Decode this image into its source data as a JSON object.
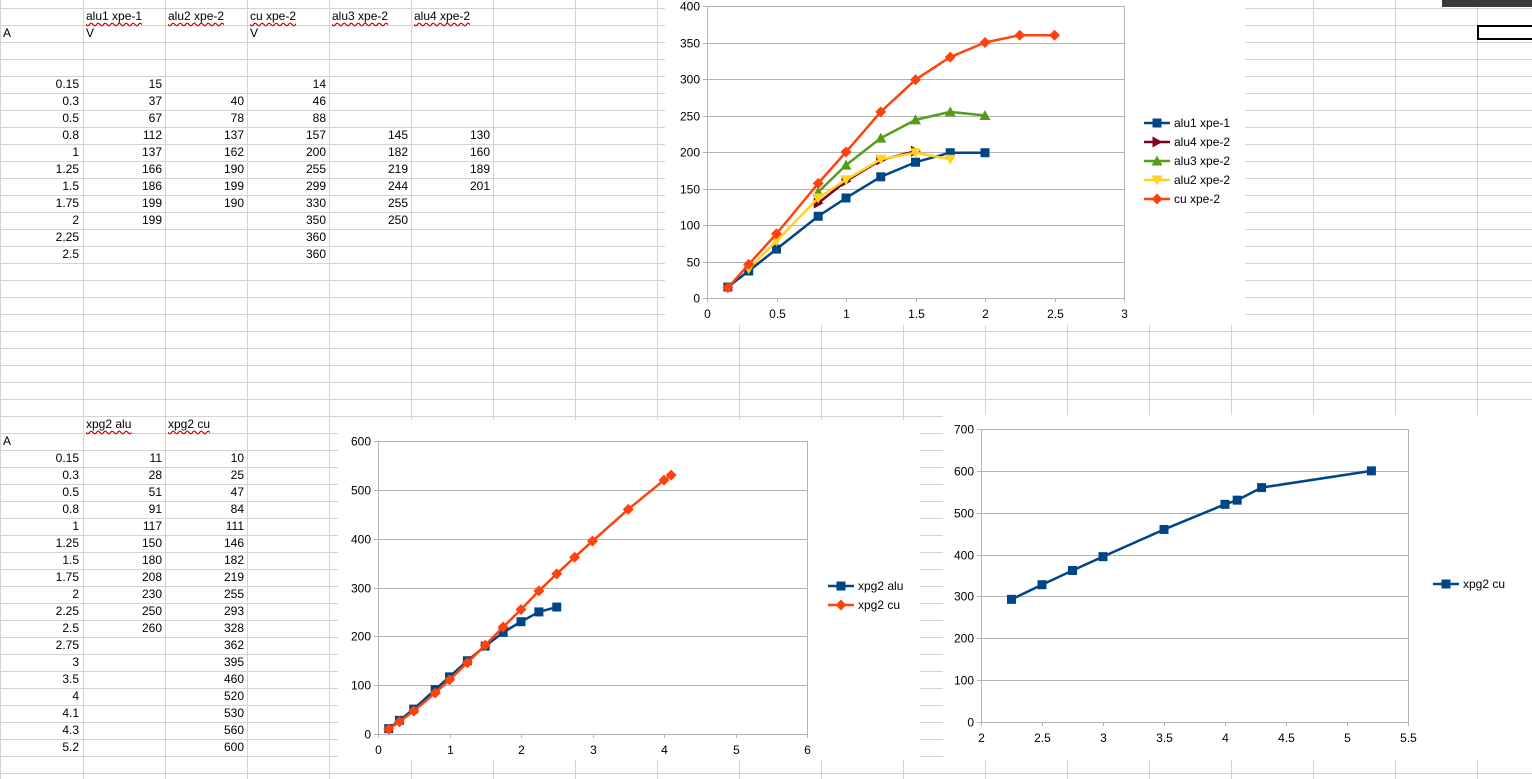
{
  "sheet1": {
    "headers": [
      "alu1 xpe-1",
      "alu2 xpe-2",
      "cu xpe-2",
      "alu3 xpe-2",
      "alu4 xpe-2"
    ],
    "units": [
      "A",
      "V",
      "V"
    ],
    "rows": [
      [
        "0.15",
        "15",
        "",
        "14",
        "",
        ""
      ],
      [
        "0.3",
        "37",
        "40",
        "46",
        "",
        ""
      ],
      [
        "0.5",
        "67",
        "78",
        "88",
        "",
        ""
      ],
      [
        "0.8",
        "112",
        "137",
        "157",
        "145",
        "130"
      ],
      [
        "1",
        "137",
        "162",
        "200",
        "182",
        "160"
      ],
      [
        "1.25",
        "166",
        "190",
        "255",
        "219",
        "189"
      ],
      [
        "1.5",
        "186",
        "199",
        "299",
        "244",
        "201"
      ],
      [
        "1.75",
        "199",
        "190",
        "330",
        "255",
        ""
      ],
      [
        "2",
        "199",
        "",
        "350",
        "250",
        ""
      ],
      [
        "2.25",
        "",
        "",
        "360",
        "",
        ""
      ],
      [
        "2.5",
        "",
        "",
        "360",
        "",
        ""
      ]
    ]
  },
  "sheet2": {
    "headers": [
      "xpg2 alu",
      "xpg2 cu"
    ],
    "unit": "A",
    "rows": [
      [
        "0.15",
        "11",
        "10"
      ],
      [
        "0.3",
        "28",
        "25"
      ],
      [
        "0.5",
        "51",
        "47"
      ],
      [
        "0.8",
        "91",
        "84"
      ],
      [
        "1",
        "117",
        "111"
      ],
      [
        "1.25",
        "150",
        "146"
      ],
      [
        "1.5",
        "180",
        "182"
      ],
      [
        "1.75",
        "208",
        "219"
      ],
      [
        "2",
        "230",
        "255"
      ],
      [
        "2.25",
        "250",
        "293"
      ],
      [
        "2.5",
        "260",
        "328"
      ],
      [
        "2.75",
        "",
        "362"
      ],
      [
        "3",
        "",
        "395"
      ],
      [
        "3.5",
        "",
        "460"
      ],
      [
        "4",
        "",
        "520"
      ],
      [
        "4.1",
        "",
        "530"
      ],
      [
        "4.3",
        "",
        "560"
      ],
      [
        "5.2",
        "",
        "600"
      ]
    ]
  },
  "chart_data": [
    {
      "type": "line",
      "title": "",
      "xlabel": "",
      "ylabel": "",
      "xlim": [
        0,
        3
      ],
      "ylim": [
        0,
        400
      ],
      "xticks": [
        "0",
        "0.5",
        "1",
        "1.5",
        "2",
        "2.5",
        "3"
      ],
      "yticks": [
        "0",
        "50",
        "100",
        "150",
        "200",
        "250",
        "300",
        "350",
        "400"
      ],
      "grid": "horizontal",
      "legend": "right",
      "series": [
        {
          "name": "alu1 xpe-1",
          "color": "#004586",
          "marker": "square",
          "x": [
            0.15,
            0.3,
            0.5,
            0.8,
            1,
            1.25,
            1.5,
            1.75,
            2
          ],
          "y": [
            15,
            37,
            67,
            112,
            137,
            166,
            186,
            199,
            199
          ]
        },
        {
          "name": "alu4 xpe-2",
          "color": "#7e0021",
          "marker": "triangle-right",
          "x": [
            0.8,
            1,
            1.25,
            1.5
          ],
          "y": [
            130,
            160,
            189,
            201
          ]
        },
        {
          "name": "alu3 xpe-2",
          "color": "#579d1c",
          "marker": "triangle-up",
          "x": [
            0.8,
            1,
            1.25,
            1.5,
            1.75,
            2
          ],
          "y": [
            145,
            182,
            219,
            244,
            255,
            250
          ]
        },
        {
          "name": "alu2 xpe-2",
          "color": "#ffd320",
          "marker": "triangle-down",
          "x": [
            0.3,
            0.5,
            0.8,
            1,
            1.25,
            1.5,
            1.75
          ],
          "y": [
            40,
            78,
            137,
            162,
            190,
            199,
            190
          ]
        },
        {
          "name": "cu xpe-2",
          "color": "#ff420e",
          "marker": "diamond",
          "x": [
            0.15,
            0.3,
            0.5,
            0.8,
            1,
            1.25,
            1.5,
            1.75,
            2,
            2.25,
            2.5
          ],
          "y": [
            14,
            46,
            88,
            157,
            200,
            255,
            299,
            330,
            350,
            360,
            360
          ]
        }
      ]
    },
    {
      "type": "line",
      "title": "",
      "xlabel": "",
      "ylabel": "",
      "xlim": [
        0,
        6
      ],
      "ylim": [
        0,
        600
      ],
      "xticks": [
        "0",
        "1",
        "2",
        "3",
        "4",
        "5",
        "6"
      ],
      "yticks": [
        "0",
        "100",
        "200",
        "300",
        "400",
        "500",
        "600"
      ],
      "grid": "horizontal",
      "legend": "right",
      "series": [
        {
          "name": "xpg2 alu",
          "color": "#004586",
          "marker": "square",
          "x": [
            0.15,
            0.3,
            0.5,
            0.8,
            1,
            1.25,
            1.5,
            1.75,
            2,
            2.25,
            2.5
          ],
          "y": [
            11,
            28,
            51,
            91,
            117,
            150,
            180,
            208,
            230,
            250,
            260
          ]
        },
        {
          "name": "xpg2 cu",
          "color": "#ff420e",
          "marker": "diamond",
          "x": [
            0.15,
            0.3,
            0.5,
            0.8,
            1,
            1.25,
            1.5,
            1.75,
            2,
            2.25,
            2.5,
            2.75,
            3,
            3.5,
            4,
            4.1
          ],
          "y": [
            10,
            25,
            47,
            84,
            111,
            146,
            182,
            219,
            255,
            293,
            328,
            362,
            395,
            460,
            520,
            530
          ]
        }
      ]
    },
    {
      "type": "line",
      "title": "",
      "xlabel": "",
      "ylabel": "",
      "xlim": [
        2,
        5.5
      ],
      "ylim": [
        0,
        700
      ],
      "xticks": [
        "2",
        "2.5",
        "3",
        "3.5",
        "4",
        "4.5",
        "5",
        "5.5"
      ],
      "yticks": [
        "0",
        "100",
        "200",
        "300",
        "400",
        "500",
        "600",
        "700"
      ],
      "grid": "horizontal",
      "legend": "right",
      "series": [
        {
          "name": "xpg2 cu",
          "color": "#004586",
          "marker": "square",
          "x": [
            2.25,
            2.5,
            2.75,
            3,
            3.5,
            4,
            4.1,
            4.3,
            5.2
          ],
          "y": [
            293,
            328,
            362,
            395,
            460,
            520,
            530,
            560,
            600
          ]
        }
      ]
    }
  ]
}
